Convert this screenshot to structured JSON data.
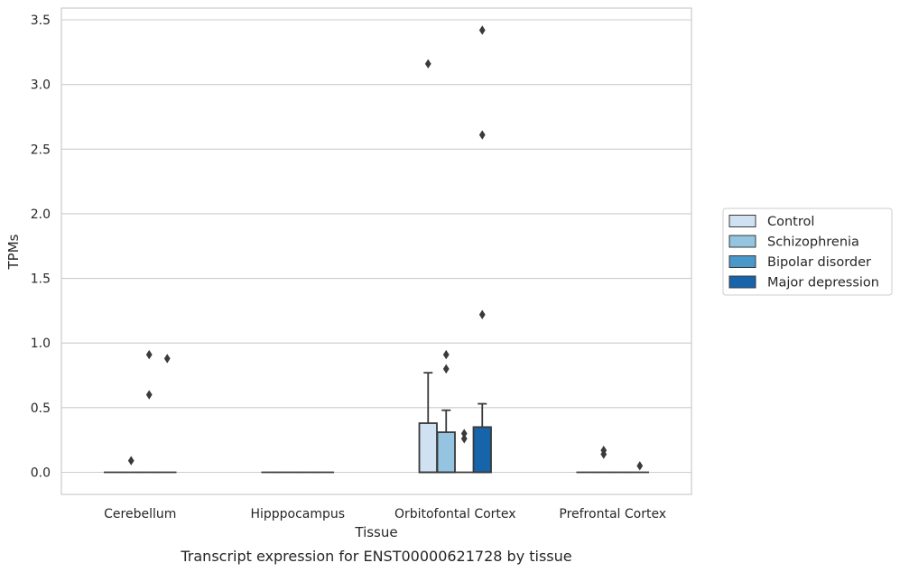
{
  "chart_data": {
    "type": "box",
    "title": "",
    "caption": "Transcript expression for ENST00000621728 by tissue",
    "xlabel": "Tissue",
    "ylabel": "TPMs",
    "ylim": [
      -0.17,
      3.6
    ],
    "yticks": [
      0.0,
      0.5,
      1.0,
      1.5,
      2.0,
      2.5,
      3.0,
      3.5
    ],
    "ytick_labels": [
      "0.0",
      "0.5",
      "1.0",
      "1.5",
      "2.0",
      "2.5",
      "3.0",
      "3.5"
    ],
    "grid": "horizontal",
    "legend_position": "right",
    "categories": [
      "Cerebellum",
      "Hipppocampus",
      "Orbitofontal Cortex",
      "Prefrontal Cortex"
    ],
    "series": [
      {
        "name": "Control",
        "color": "#d0e1f2",
        "boxes": [
          {
            "q1": 0,
            "median": 0,
            "q3": 0,
            "whisker_low": 0,
            "whisker_high": 0,
            "outliers": []
          },
          {
            "q1": 0,
            "median": 0,
            "q3": 0,
            "whisker_low": 0,
            "whisker_high": 0,
            "outliers": []
          },
          {
            "q1": 0,
            "median": 0,
            "q3": 0.38,
            "whisker_low": 0,
            "whisker_high": 0.77,
            "outliers": [
              3.16
            ]
          },
          {
            "q1": 0,
            "median": 0,
            "q3": 0,
            "whisker_low": 0,
            "whisker_high": 0,
            "outliers": []
          }
        ]
      },
      {
        "name": "Schizophrenia",
        "color": "#94c4df",
        "boxes": [
          {
            "q1": 0,
            "median": 0,
            "q3": 0,
            "whisker_low": 0,
            "whisker_high": 0,
            "outliers": [
              0.09
            ]
          },
          {
            "q1": 0,
            "median": 0,
            "q3": 0,
            "whisker_low": 0,
            "whisker_high": 0,
            "outliers": []
          },
          {
            "q1": 0,
            "median": 0,
            "q3": 0.31,
            "whisker_low": 0,
            "whisker_high": 0.48,
            "outliers": [
              0.8,
              0.91
            ]
          },
          {
            "q1": 0,
            "median": 0,
            "q3": 0,
            "whisker_low": 0,
            "whisker_high": 0,
            "outliers": [
              0.14,
              0.17
            ]
          }
        ]
      },
      {
        "name": "Bipolar disorder",
        "color": "#4a98c9",
        "boxes": [
          {
            "q1": 0,
            "median": 0,
            "q3": 0,
            "whisker_low": 0,
            "whisker_high": 0,
            "outliers": [
              0.6,
              0.91
            ]
          },
          {
            "q1": 0,
            "median": 0,
            "q3": 0,
            "whisker_low": 0,
            "whisker_high": 0,
            "outliers": []
          },
          {
            "q1": 0,
            "median": 0,
            "q3": 0,
            "whisker_low": 0,
            "whisker_high": 0,
            "outliers": [
              0.26,
              0.3
            ]
          },
          {
            "q1": 0,
            "median": 0,
            "q3": 0,
            "whisker_low": 0,
            "whisker_high": 0,
            "outliers": []
          }
        ]
      },
      {
        "name": "Major depression",
        "color": "#1764ab",
        "boxes": [
          {
            "q1": 0,
            "median": 0,
            "q3": 0,
            "whisker_low": 0,
            "whisker_high": 0,
            "outliers": [
              0.88
            ]
          },
          {
            "q1": 0,
            "median": 0,
            "q3": 0,
            "whisker_low": 0,
            "whisker_high": 0,
            "outliers": []
          },
          {
            "q1": 0,
            "median": 0,
            "q3": 0.35,
            "whisker_low": 0,
            "whisker_high": 0.53,
            "outliers": [
              1.22,
              2.61,
              3.42
            ]
          },
          {
            "q1": 0,
            "median": 0,
            "q3": 0,
            "whisker_low": 0,
            "whisker_high": 0,
            "outliers": [
              0.05
            ]
          }
        ]
      }
    ],
    "colors": {
      "grid": "#cccccc",
      "frame": "#cccccc",
      "box_edge": "#3a3a3a",
      "marker": "#3a3a3a",
      "text": "#262626"
    }
  }
}
